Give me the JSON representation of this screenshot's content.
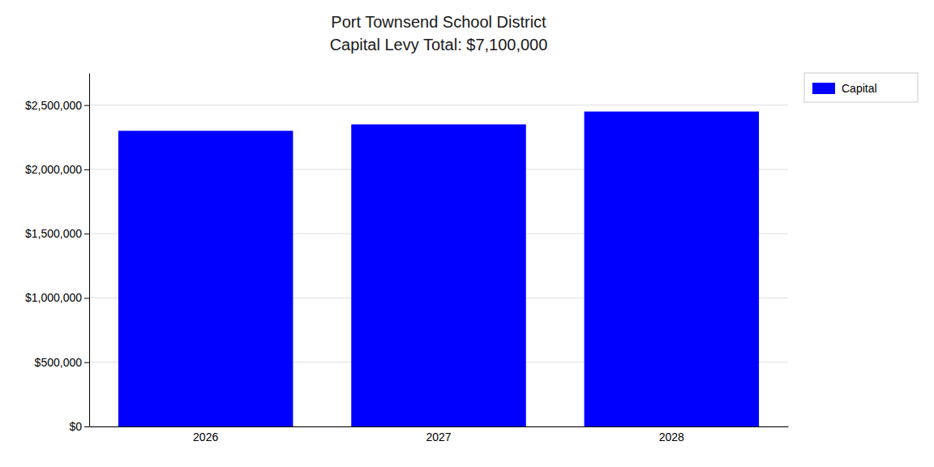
{
  "chart_data": {
    "type": "bar",
    "title": "Port Townsend School District",
    "subtitle": "Capital Levy Total: $7,100,000",
    "categories": [
      "2026",
      "2027",
      "2028"
    ],
    "series": [
      {
        "name": "Capital",
        "color": "#0000ff",
        "values": [
          2300000,
          2350000,
          2450000
        ]
      }
    ],
    "ylim": [
      0,
      2750000
    ],
    "yticks": [
      {
        "value": 0,
        "label": "$0"
      },
      {
        "value": 500000,
        "label": "$500,000"
      },
      {
        "value": 1000000,
        "label": "$1,000,000"
      },
      {
        "value": 1500000,
        "label": "$1,500,000"
      },
      {
        "value": 2000000,
        "label": "$2,000,000"
      },
      {
        "value": 2500000,
        "label": "$2,500,000"
      }
    ],
    "grid": true,
    "legend": "upper right"
  }
}
